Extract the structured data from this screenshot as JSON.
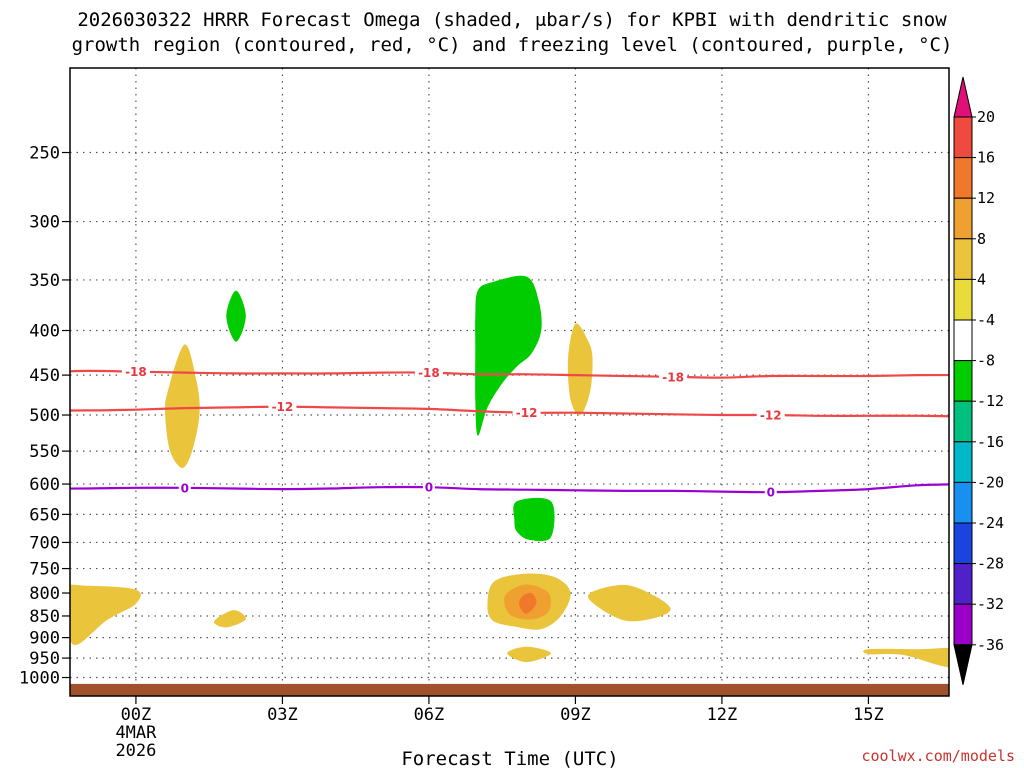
{
  "chart_data": {
    "type": "time-height cross section",
    "title_line1": "2026030322 HRRR Forecast Omega (shaded, μbar/s) for KPBI with dendritic snow",
    "title_line2": "growth region (contoured, red, °C) and freezing level (contoured, purple, °C)",
    "xlabel": "Forecast Time (UTC)",
    "credit": "coolwx.com/models",
    "x_range_hours": [
      -1.35,
      16.65
    ],
    "y_range_hPa": [
      1050,
      200
    ],
    "x_ticks": [
      {
        "hour": 0,
        "label": "00Z",
        "sub1": "4MAR",
        "sub2": "2026"
      },
      {
        "hour": 3,
        "label": "03Z"
      },
      {
        "hour": 6,
        "label": "06Z"
      },
      {
        "hour": 9,
        "label": "09Z"
      },
      {
        "hour": 12,
        "label": "12Z"
      },
      {
        "hour": 15,
        "label": "15Z"
      }
    ],
    "y_ticks": [
      250,
      300,
      350,
      400,
      450,
      500,
      550,
      600,
      650,
      700,
      750,
      800,
      850,
      900,
      950,
      1000
    ],
    "colorbar": {
      "levels": [
        "20",
        "16",
        "12",
        "8",
        "4",
        "-4",
        "-8",
        "-12",
        "-16",
        "-20",
        "-24",
        "-28",
        "-32",
        "-36"
      ],
      "colors": [
        "#e01078",
        "#f04a3e",
        "#f0782a",
        "#f0a030",
        "#eac43a",
        "#e8dc3a",
        "#ffffff",
        "#00cc00",
        "#00c080",
        "#00b8c8",
        "#1890f0",
        "#1a44e0",
        "#5020c8",
        "#9a00c8",
        "#a8a8a8",
        "#000000"
      ]
    },
    "contours": [
      {
        "name": "dgz-minus-18",
        "value": -18,
        "label": "-18",
        "color": "#f04848",
        "points": [
          [
            -2,
            447
          ],
          [
            -1,
            445
          ],
          [
            0,
            446
          ],
          [
            1,
            447
          ],
          [
            2,
            448
          ],
          [
            3,
            448
          ],
          [
            4,
            448
          ],
          [
            5,
            447
          ],
          [
            6,
            447
          ],
          [
            7,
            449
          ],
          [
            8,
            449
          ],
          [
            9,
            450
          ],
          [
            10,
            451
          ],
          [
            11,
            452
          ],
          [
            12,
            453
          ],
          [
            13,
            451
          ],
          [
            14,
            451
          ],
          [
            15,
            451
          ],
          [
            16,
            450
          ],
          [
            17,
            450
          ]
        ],
        "label_hours": [
          0,
          6,
          11
        ]
      },
      {
        "name": "dgz-minus-12",
        "value": -12,
        "label": "-12",
        "color": "#f04848",
        "points": [
          [
            -2,
            494
          ],
          [
            -1,
            494
          ],
          [
            0,
            493
          ],
          [
            1,
            491
          ],
          [
            2,
            490
          ],
          [
            3,
            489
          ],
          [
            4,
            490
          ],
          [
            5,
            491
          ],
          [
            6,
            492
          ],
          [
            7,
            495
          ],
          [
            8,
            497
          ],
          [
            9,
            497
          ],
          [
            10,
            498
          ],
          [
            11,
            499
          ],
          [
            12,
            500
          ],
          [
            13,
            500
          ],
          [
            14,
            501
          ],
          [
            15,
            501
          ],
          [
            16,
            501
          ],
          [
            17,
            502
          ]
        ],
        "label_hours": [
          3,
          8,
          13
        ]
      },
      {
        "name": "freezing-level-0",
        "value": 0,
        "label": "0",
        "color": "#9b00d3",
        "points": [
          [
            -2,
            607
          ],
          [
            -1,
            607
          ],
          [
            0,
            606
          ],
          [
            1,
            606
          ],
          [
            2,
            607
          ],
          [
            3,
            608
          ],
          [
            4,
            607
          ],
          [
            5,
            605
          ],
          [
            6,
            605
          ],
          [
            7,
            608
          ],
          [
            8,
            609
          ],
          [
            9,
            610
          ],
          [
            10,
            611
          ],
          [
            11,
            611
          ],
          [
            12,
            612
          ],
          [
            13,
            613
          ],
          [
            14,
            611
          ],
          [
            15,
            608
          ],
          [
            16,
            602
          ],
          [
            17,
            600
          ]
        ],
        "label_hours": [
          1,
          6,
          13
        ]
      }
    ],
    "omega_regions": [
      {
        "name": "omega-green-0200z",
        "value": "-4 to -8",
        "color": "#00cc00",
        "points": [
          [
            2.05,
            360
          ],
          [
            2.25,
            385
          ],
          [
            2.05,
            412
          ],
          [
            1.85,
            385
          ]
        ]
      },
      {
        "name": "omega-green-0800z-upper",
        "value": "-4 to -8",
        "color": "#00cc00",
        "points": [
          [
            7.0,
            360
          ],
          [
            7.3,
            352
          ],
          [
            8.0,
            347
          ],
          [
            8.25,
            370
          ],
          [
            8.3,
            400
          ],
          [
            8.1,
            425
          ],
          [
            7.8,
            440
          ],
          [
            7.5,
            460
          ],
          [
            7.2,
            490
          ],
          [
            7.0,
            528
          ],
          [
            6.95,
            480
          ],
          [
            6.95,
            420
          ],
          [
            6.95,
            385
          ]
        ]
      },
      {
        "name": "omega-green-0800z-lower",
        "value": "-4 to -8",
        "color": "#00cc00",
        "points": [
          [
            7.8,
            628
          ],
          [
            8.5,
            628
          ],
          [
            8.5,
            690
          ],
          [
            8.05,
            695
          ],
          [
            7.8,
            680
          ],
          [
            7.75,
            660
          ]
        ]
      },
      {
        "name": "omega-yellow-0100z",
        "value": "4 to 8",
        "color": "#eac43a",
        "points": [
          [
            1.0,
            415
          ],
          [
            1.25,
            460
          ],
          [
            1.3,
            500
          ],
          [
            1.15,
            550
          ],
          [
            0.95,
            575
          ],
          [
            0.7,
            550
          ],
          [
            0.6,
            500
          ],
          [
            0.65,
            470
          ]
        ]
      },
      {
        "name": "omega-yellow-0900z",
        "value": "4 to 8",
        "color": "#eac43a",
        "points": [
          [
            9.0,
            393
          ],
          [
            9.25,
            410
          ],
          [
            9.35,
            430
          ],
          [
            9.3,
            470
          ],
          [
            9.1,
            500
          ],
          [
            8.9,
            480
          ],
          [
            8.85,
            430
          ]
        ]
      },
      {
        "name": "omega-yellow-2300z-low",
        "value": "4 to 8",
        "color": "#eac43a",
        "points": [
          [
            -1.45,
            788
          ],
          [
            -1.0,
            785
          ],
          [
            0.0,
            793
          ],
          [
            0.0,
            823
          ],
          [
            -0.6,
            860
          ],
          [
            -1.2,
            917
          ],
          [
            -1.4,
            890
          ],
          [
            -1.45,
            840
          ]
        ]
      },
      {
        "name": "omega-yellow-0200z-low",
        "value": "4 to 8",
        "color": "#eac43a",
        "points": [
          [
            2.0,
            837
          ],
          [
            2.25,
            857
          ],
          [
            1.85,
            876
          ],
          [
            1.6,
            862
          ]
        ]
      },
      {
        "name": "omega-yellow-0800z-low",
        "value": "4 to 8",
        "color": "#eac43a",
        "points": [
          [
            7.35,
            775
          ],
          [
            8.0,
            760
          ],
          [
            8.6,
            768
          ],
          [
            8.9,
            800
          ],
          [
            8.7,
            850
          ],
          [
            8.3,
            880
          ],
          [
            7.8,
            875
          ],
          [
            7.3,
            860
          ],
          [
            7.2,
            820
          ]
        ]
      },
      {
        "name": "omega-orange-0800z-low",
        "value": "8 to 12",
        "color": "#f0a030",
        "points": [
          [
            7.6,
            800
          ],
          [
            8.0,
            782
          ],
          [
            8.45,
            800
          ],
          [
            8.45,
            840
          ],
          [
            8.1,
            858
          ],
          [
            7.7,
            850
          ],
          [
            7.55,
            825
          ]
        ]
      },
      {
        "name": "omega-orangered-0800z-low",
        "value": "12 to 16",
        "color": "#f0782a",
        "points": [
          [
            7.9,
            808
          ],
          [
            8.1,
            800
          ],
          [
            8.2,
            822
          ],
          [
            8.0,
            845
          ],
          [
            7.85,
            827
          ]
        ]
      },
      {
        "name": "omega-yellow-0800z-bottom",
        "value": "4 to 8",
        "color": "#eac43a",
        "points": [
          [
            7.6,
            938
          ],
          [
            8.0,
            922
          ],
          [
            8.5,
            938
          ],
          [
            8.0,
            960
          ]
        ]
      },
      {
        "name": "omega-yellow-1000z-low",
        "value": "4 to 8",
        "color": "#eac43a",
        "points": [
          [
            9.3,
            800
          ],
          [
            10.0,
            783
          ],
          [
            10.6,
            805
          ],
          [
            10.95,
            835
          ],
          [
            10.6,
            855
          ],
          [
            10.0,
            860
          ],
          [
            9.4,
            825
          ]
        ]
      },
      {
        "name": "omega-yellow-1500z-bottom",
        "value": "4 to 8",
        "color": "#eac43a",
        "points": [
          [
            15.0,
            928
          ],
          [
            16.0,
            928
          ],
          [
            16.95,
            928
          ],
          [
            16.95,
            975
          ],
          [
            16.5,
            970
          ],
          [
            15.7,
            942
          ],
          [
            15.0,
            940
          ]
        ]
      }
    ],
    "terrain": {
      "top_hPa": 1017,
      "color": "#a0522d"
    }
  }
}
